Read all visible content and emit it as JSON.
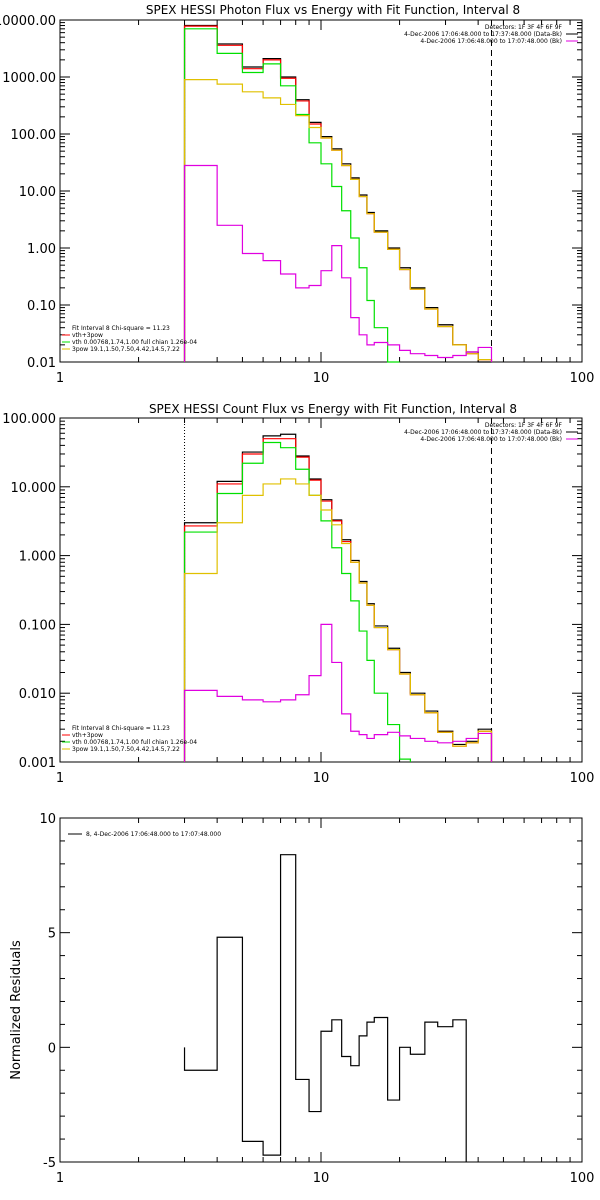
{
  "chart_data": [
    {
      "type": "line",
      "step": true,
      "title": "SPEX HESSI Photon Flux vs Energy with Fit Function, Interval 8",
      "xscale": "log",
      "yscale": "log",
      "xlim": [
        1,
        100
      ],
      "ylim": [
        0.01,
        10000
      ],
      "xticks": [
        "1",
        "10",
        "100"
      ],
      "yticks": [
        "10000.00",
        "1000.00",
        "100.00",
        "10.00",
        "1.00",
        "0.10",
        "0.01"
      ],
      "ytick_values": [
        10000,
        1000,
        100,
        10,
        1,
        0.1,
        0.01
      ],
      "grid": false,
      "legend_position": "bottom-left",
      "info_lines": [
        "Detectors: 1F 3F 4F 6F 9F",
        "4-Dec-2006 17:06:48.000 to 17:37:48.000 (Data-Bk)",
        "4-Dec-2006 17:06:48.000 to 17:07:48.000 (Bk)"
      ],
      "legend": [
        "Fit Interval 8    Chi-square = 11.23",
        "vth+3pow",
        "vth 0.00768,1.74,1.00  full chian 1.26e-04",
        "3pow 19.1,1.50,7.50,4.42,14.5,7.22"
      ],
      "edges": [
        3,
        4,
        5,
        6,
        7,
        8,
        9,
        10,
        11,
        12,
        13,
        14,
        15,
        16,
        18,
        20,
        22,
        25,
        28,
        32,
        36,
        40,
        45
      ],
      "vlines": [
        {
          "x": 3,
          "style": "dotted"
        },
        {
          "x": 45,
          "style": "dashed"
        }
      ],
      "series": [
        {
          "name": "data",
          "color": "#000000",
          "values": [
            8000,
            3800,
            1500,
            2100,
            1000,
            400,
            160,
            90,
            55,
            30,
            17,
            8.5,
            4.2,
            2.0,
            1.0,
            0.45,
            0.2,
            0.09,
            0.045,
            0.02,
            0.015,
            0.01
          ]
        },
        {
          "name": "vth+3pow",
          "color": "#ff0000",
          "values": [
            7800,
            3600,
            1400,
            2000,
            950,
            380,
            150,
            85,
            52,
            28,
            16,
            8.0,
            4.0,
            1.9,
            0.95,
            0.42,
            0.19,
            0.085,
            0.042,
            0.02,
            0.014,
            0.011
          ]
        },
        {
          "name": "vth",
          "color": "#00e000",
          "values": [
            7000,
            2600,
            1200,
            1700,
            700,
            220,
            70,
            30,
            12,
            4.5,
            1.5,
            0.45,
            0.12,
            0.04,
            0.008
          ]
        },
        {
          "name": "3pow",
          "color": "#e0c000",
          "values": [
            900,
            750,
            550,
            430,
            330,
            210,
            130,
            85,
            52,
            28,
            16,
            8.0,
            4.0,
            1.9,
            0.95,
            0.42,
            0.19,
            0.085,
            0.042,
            0.02,
            0.014,
            0.011
          ]
        },
        {
          "name": "background",
          "color": "#e000e0",
          "values": [
            28,
            2.5,
            0.8,
            0.6,
            0.35,
            0.2,
            0.22,
            0.4,
            1.1,
            0.3,
            0.06,
            0.03,
            0.02,
            0.022,
            0.02,
            0.016,
            0.014,
            0.013,
            0.012,
            0.013,
            0.015,
            0.018
          ]
        }
      ]
    },
    {
      "type": "line",
      "step": true,
      "title": "SPEX HESSI Count Flux vs Energy with Fit Function, Interval 8",
      "xscale": "log",
      "yscale": "log",
      "xlim": [
        1,
        100
      ],
      "ylim": [
        0.001,
        100
      ],
      "xticks": [
        "1",
        "10",
        "100"
      ],
      "yticks": [
        "100.000",
        "10.000",
        "1.000",
        "0.100",
        "0.010",
        "0.001"
      ],
      "ytick_values": [
        100,
        10,
        1,
        0.1,
        0.01,
        0.001
      ],
      "grid": false,
      "legend_position": "bottom-left",
      "info_lines": [
        "Detectors: 1F 3F 4F 6F 9F",
        "4-Dec-2006 17:06:48.000 to 17:37:48.000 (Data-Bk)",
        "4-Dec-2006 17:06:48.000 to 17:07:48.000 (Bk)"
      ],
      "legend": [
        "Fit Interval 8    Chi-square = 11.23",
        "vth+3pow",
        "vth 0.00768,1.74,1.00  full chian 1.26e-04",
        "3pow 19.1,1.50,7.50,4.42,14.5,7.22"
      ],
      "edges": [
        3,
        4,
        5,
        6,
        7,
        8,
        9,
        10,
        11,
        12,
        13,
        14,
        15,
        16,
        18,
        20,
        22,
        25,
        28,
        32,
        36,
        40,
        45
      ],
      "vlines": [
        {
          "x": 3,
          "style": "dotted"
        },
        {
          "x": 45,
          "style": "dashed"
        }
      ],
      "series": [
        {
          "name": "data",
          "color": "#000000",
          "values": [
            3.0,
            12,
            32,
            55,
            58,
            28,
            13,
            6.5,
            3.3,
            1.7,
            0.85,
            0.42,
            0.2,
            0.095,
            0.045,
            0.02,
            0.01,
            0.0055,
            0.0028,
            0.0018,
            0.002,
            0.003
          ]
        },
        {
          "name": "vth+3pow",
          "color": "#ff0000",
          "values": [
            2.7,
            11,
            30,
            50,
            50,
            27,
            12.5,
            6.2,
            3.2,
            1.6,
            0.8,
            0.4,
            0.19,
            0.09,
            0.043,
            0.019,
            0.0095,
            0.0052,
            0.0027,
            0.0017,
            0.0019,
            0.0028
          ]
        },
        {
          "name": "vth",
          "color": "#00e000",
          "values": [
            2.2,
            8,
            22,
            44,
            37,
            18,
            7.5,
            3.2,
            1.3,
            0.55,
            0.22,
            0.08,
            0.03,
            0.01,
            0.0035,
            0.0011
          ]
        },
        {
          "name": "3pow",
          "color": "#e0c000",
          "values": [
            0.55,
            3,
            7.5,
            11,
            13,
            11,
            7.5,
            4.6,
            2.8,
            1.5,
            0.8,
            0.4,
            0.19,
            0.09,
            0.043,
            0.019,
            0.0095,
            0.0052,
            0.0027,
            0.0017,
            0.0019,
            0.0028
          ]
        },
        {
          "name": "background",
          "color": "#e000e0",
          "values": [
            0.011,
            0.009,
            0.008,
            0.0075,
            0.008,
            0.0095,
            0.018,
            0.1,
            0.028,
            0.005,
            0.0028,
            0.0025,
            0.0022,
            0.0025,
            0.0027,
            0.0024,
            0.0022,
            0.002,
            0.0019,
            0.002,
            0.0022,
            0.0026
          ]
        }
      ]
    },
    {
      "type": "line",
      "step": true,
      "xscale": "log",
      "xlim": [
        1,
        100
      ],
      "ylim": [
        -5,
        10
      ],
      "ylabel": "Normalized Residuals",
      "xticks": [
        "1",
        "10",
        "100"
      ],
      "yticks": [
        "10",
        "5",
        "0",
        "-5"
      ],
      "ytick_values": [
        10,
        5,
        0,
        -5
      ],
      "grid": false,
      "legend_position": "top-left",
      "legend": [
        "8,  4-Dec-2006 17:06:48.000 to 17:07:48.000"
      ],
      "edges": [
        3,
        4,
        5,
        6,
        7,
        8,
        9,
        10,
        11,
        12,
        13,
        14,
        15,
        16,
        18,
        20,
        22,
        25,
        28,
        32,
        36,
        40,
        45
      ],
      "series": [
        {
          "name": "8,  4-Dec-2006 17:06:48.000 to 17:07:48.000",
          "color": "#000000",
          "values": [
            -1.0,
            4.8,
            -4.1,
            -4.7,
            8.4,
            -1.4,
            -2.8,
            0.7,
            1.2,
            -0.4,
            -0.8,
            0.5,
            1.1,
            1.3,
            -2.3,
            0.0,
            -0.3,
            1.1,
            0.9,
            1.2
          ]
        }
      ]
    }
  ]
}
